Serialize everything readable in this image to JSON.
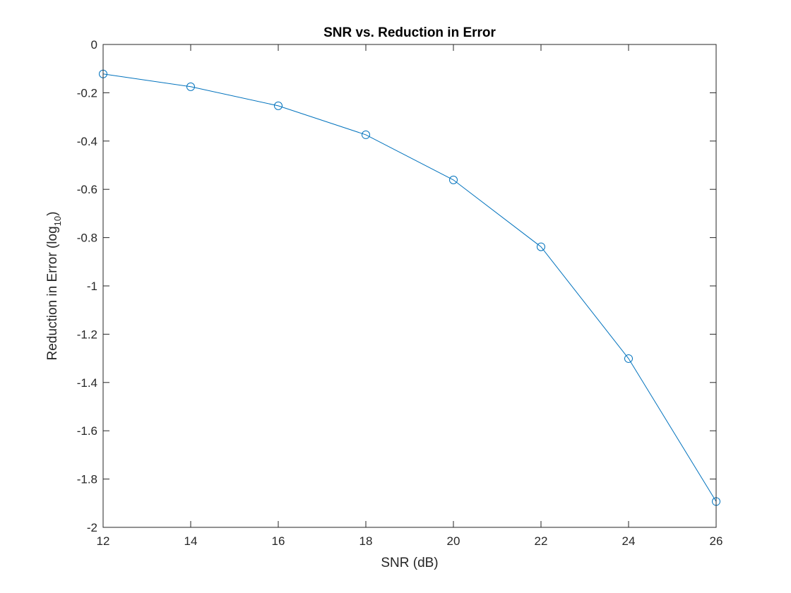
{
  "chart_data": {
    "type": "line",
    "title": "SNR vs. Reduction in Error",
    "xlabel": "SNR (dB)",
    "ylabel": {
      "prefix": "Reduction in Error (log",
      "subscript": "10",
      "suffix": ")"
    },
    "xlim": [
      12,
      26
    ],
    "ylim": [
      -2,
      0
    ],
    "xticks": [
      12,
      14,
      16,
      18,
      20,
      22,
      24,
      26
    ],
    "xtick_labels": [
      "12",
      "14",
      "16",
      "18",
      "20",
      "22",
      "24",
      "26"
    ],
    "yticks": [
      0,
      -0.2,
      -0.4,
      -0.6,
      -0.8,
      -1,
      -1.2,
      -1.4,
      -1.6,
      -1.8,
      -2
    ],
    "ytick_labels": [
      "0",
      "-0.2",
      "-0.4",
      "-0.6",
      "-0.8",
      "-1",
      "-1.2",
      "-1.4",
      "-1.6",
      "-1.8",
      "-2"
    ],
    "grid": false,
    "series": [
      {
        "color": "#0072BD",
        "marker": "circle",
        "x": [
          12,
          14,
          16,
          18,
          20,
          22,
          24,
          26
        ],
        "y": [
          -0.122,
          -0.175,
          -0.254,
          -0.374,
          -0.561,
          -0.838,
          -1.301,
          -1.893
        ]
      }
    ]
  }
}
